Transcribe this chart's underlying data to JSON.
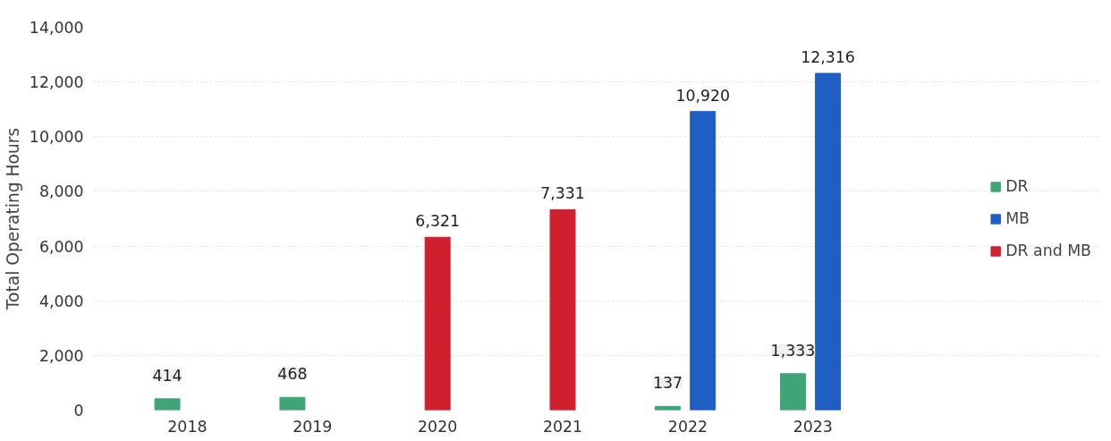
{
  "chart_data": {
    "type": "bar",
    "ylabel": "Total Operating Hours",
    "categories": [
      "2018",
      "2019",
      "2020",
      "2021",
      "2022",
      "2023"
    ],
    "series": [
      {
        "name": "DR",
        "color": "#3fa577",
        "values": [
          414,
          468,
          null,
          null,
          137,
          1333
        ],
        "value_labels": [
          "414",
          "468",
          null,
          null,
          "137",
          "1,333"
        ]
      },
      {
        "name": "MB",
        "color": "#1f5fc4",
        "values": [
          null,
          null,
          null,
          null,
          10920,
          12316
        ],
        "value_labels": [
          null,
          null,
          null,
          null,
          "10,920",
          "12,316"
        ]
      },
      {
        "name": "DR and MB",
        "color": "#d0202f",
        "values": [
          null,
          null,
          6321,
          7331,
          null,
          null
        ],
        "value_labels": [
          null,
          null,
          "6,321",
          "7,331",
          null,
          null
        ]
      }
    ],
    "ylim": [
      0,
      14000
    ],
    "yticks": [
      0,
      {
        "value": 2000,
        "label": "2,000"
      },
      {
        "value": 4000,
        "label": "4,000"
      },
      {
        "value": 6000,
        "label": "6,000"
      },
      {
        "value": 8000,
        "label": "8,000"
      },
      {
        "value": 10000,
        "label": "10,000"
      },
      {
        "value": 12000,
        "label": "12,000"
      },
      {
        "value": 14000,
        "label": "14,000"
      }
    ],
    "grid": "y",
    "legend": "right"
  }
}
